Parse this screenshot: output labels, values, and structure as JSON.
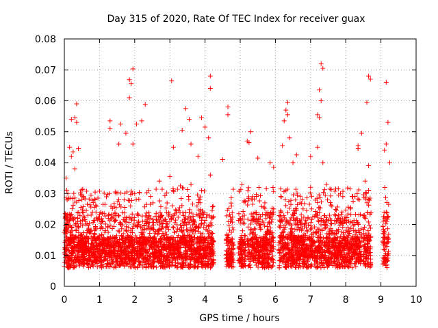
{
  "chart_data": {
    "type": "scatter",
    "title": "Day 315 of 2020, Rate Of TEC Index for receiver guax",
    "xlabel": "GPS time / hours",
    "ylabel": "ROTI / TECUs",
    "xlim": [
      0,
      10
    ],
    "ylim": [
      0,
      0.08
    ],
    "x_ticks": [
      "0",
      "1",
      "2",
      "3",
      "4",
      "5",
      "6",
      "7",
      "8",
      "9",
      "10"
    ],
    "y_ticks": [
      "0",
      "0.01",
      "0.02",
      "0.03",
      "0.04",
      "0.05",
      "0.06",
      "0.07",
      "0.08"
    ],
    "grid": true,
    "marker": "+",
    "color": "#ff0000",
    "series": [
      {
        "points": [
          [
            1.95,
            0.0703
          ],
          [
            1.85,
            0.0668
          ],
          [
            1.9,
            0.0655
          ],
          [
            1.85,
            0.061
          ],
          [
            2.3,
            0.0588
          ],
          [
            2.2,
            0.0535
          ],
          [
            2.05,
            0.0525
          ],
          [
            1.3,
            0.0535
          ],
          [
            1.3,
            0.051
          ],
          [
            1.6,
            0.0525
          ],
          [
            1.75,
            0.0495
          ],
          [
            1.55,
            0.046
          ],
          [
            1.95,
            0.046
          ],
          [
            0.35,
            0.059
          ],
          [
            0.3,
            0.0545
          ],
          [
            0.35,
            0.053
          ],
          [
            0.2,
            0.054
          ],
          [
            0.15,
            0.045
          ],
          [
            0.2,
            0.042
          ],
          [
            0.25,
            0.0435
          ],
          [
            0.4,
            0.0445
          ],
          [
            0.05,
            0.035
          ],
          [
            0.1,
            0.03
          ],
          [
            0.3,
            0.038
          ],
          [
            3.05,
            0.0665
          ],
          [
            3.45,
            0.0575
          ],
          [
            3.55,
            0.054
          ],
          [
            3.35,
            0.0505
          ],
          [
            3.1,
            0.045
          ],
          [
            3.6,
            0.046
          ],
          [
            3.9,
            0.0545
          ],
          [
            4.15,
            0.068
          ],
          [
            4.15,
            0.064
          ],
          [
            4.0,
            0.0515
          ],
          [
            4.1,
            0.048
          ],
          [
            3.8,
            0.042
          ],
          [
            4.65,
            0.058
          ],
          [
            4.65,
            0.0555
          ],
          [
            4.5,
            0.041
          ],
          [
            5.3,
            0.05
          ],
          [
            5.2,
            0.047
          ],
          [
            5.25,
            0.0465
          ],
          [
            5.5,
            0.0415
          ],
          [
            5.85,
            0.04
          ],
          [
            5.95,
            0.0385
          ],
          [
            6.35,
            0.0595
          ],
          [
            6.3,
            0.057
          ],
          [
            6.35,
            0.0555
          ],
          [
            6.25,
            0.0535
          ],
          [
            6.4,
            0.048
          ],
          [
            6.2,
            0.0455
          ],
          [
            6.6,
            0.0425
          ],
          [
            6.5,
            0.04
          ],
          [
            7.3,
            0.072
          ],
          [
            7.35,
            0.0705
          ],
          [
            7.25,
            0.0635
          ],
          [
            7.3,
            0.06
          ],
          [
            7.2,
            0.0555
          ],
          [
            7.25,
            0.0545
          ],
          [
            7.2,
            0.045
          ],
          [
            7.0,
            0.042
          ],
          [
            7.35,
            0.04
          ],
          [
            8.65,
            0.068
          ],
          [
            8.7,
            0.067
          ],
          [
            8.6,
            0.0595
          ],
          [
            8.45,
            0.0495
          ],
          [
            8.35,
            0.0455
          ],
          [
            8.35,
            0.0445
          ],
          [
            8.65,
            0.039
          ],
          [
            9.15,
            0.066
          ],
          [
            9.2,
            0.053
          ],
          [
            9.15,
            0.046
          ],
          [
            9.25,
            0.04
          ],
          [
            9.1,
            0.044
          ],
          [
            0.5,
            0.028
          ],
          [
            0.8,
            0.024
          ],
          [
            1.1,
            0.0265
          ],
          [
            1.4,
            0.0225
          ],
          [
            1.7,
            0.028
          ],
          [
            2.0,
            0.03
          ],
          [
            2.4,
            0.031
          ],
          [
            2.7,
            0.034
          ],
          [
            3.0,
            0.0355
          ],
          [
            3.3,
            0.0325
          ],
          [
            3.6,
            0.033
          ],
          [
            3.9,
            0.031
          ],
          [
            4.15,
            0.036
          ],
          [
            4.75,
            0.026
          ],
          [
            5.05,
            0.033
          ],
          [
            5.35,
            0.029
          ],
          [
            5.7,
            0.027
          ],
          [
            5.95,
            0.025
          ],
          [
            6.3,
            0.031
          ],
          [
            6.7,
            0.027
          ],
          [
            7.0,
            0.032
          ],
          [
            7.45,
            0.033
          ],
          [
            7.85,
            0.03
          ],
          [
            8.2,
            0.029
          ],
          [
            8.55,
            0.034
          ],
          [
            9.15,
            0.024
          ]
        ]
      }
    ],
    "bands": [
      [
        0.0,
        4.25
      ],
      [
        4.6,
        4.82
      ],
      [
        4.95,
        5.15
      ],
      [
        5.2,
        5.95
      ],
      [
        6.1,
        8.45
      ],
      [
        8.5,
        8.72
      ],
      [
        9.05,
        9.22
      ]
    ]
  }
}
